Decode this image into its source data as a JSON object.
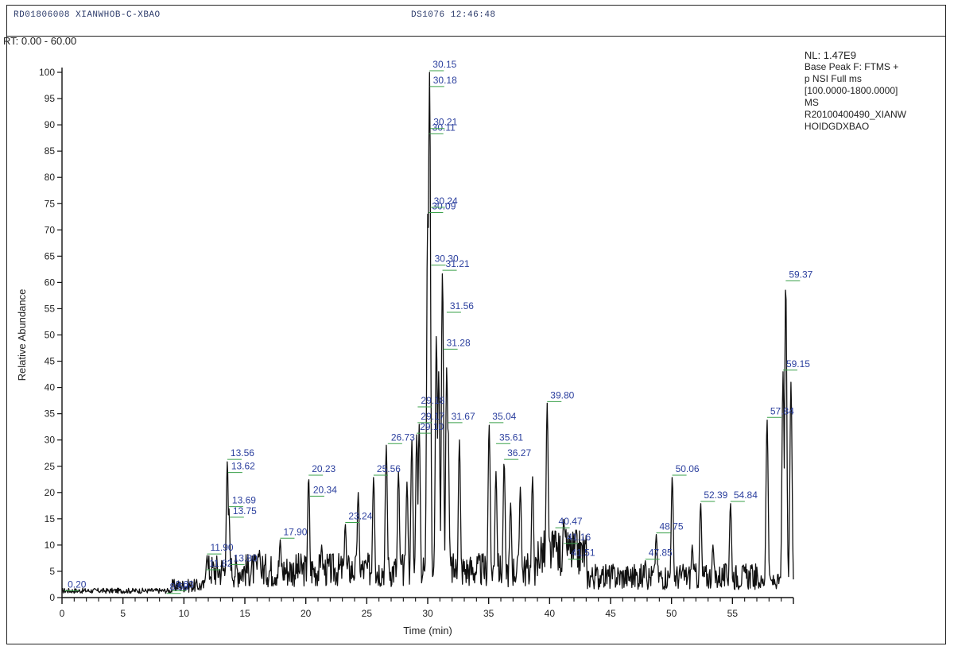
{
  "header": {
    "left_text": "RD01806008 XIANWHOB-C-XBAO",
    "right_text": "DS1076 12:46:48"
  },
  "rt_range": "RT: 0.00 - 60.00",
  "info": {
    "nl": "NL: 1.47E9",
    "lines": [
      "Base Peak F: FTMS +",
      "p NSI Full ms",
      "[100.0000-1800.0000]",
      "MS",
      "R20100400490_XIANW",
      "HOIDGDXBAO"
    ]
  },
  "chart_data": {
    "type": "line",
    "title": "",
    "xlabel": "Time (min)",
    "ylabel": "Relative Abundance",
    "xlim": [
      0,
      60
    ],
    "ylim": [
      0,
      100
    ],
    "x_ticks": [
      0,
      5,
      10,
      15,
      20,
      25,
      30,
      35,
      40,
      45,
      50,
      55
    ],
    "x_tick_labels": [
      "0",
      "5",
      "10",
      "15",
      "20",
      "25",
      "30",
      "35",
      "40",
      "45",
      "50",
      "55"
    ],
    "y_ticks": [
      0,
      5,
      10,
      15,
      20,
      25,
      30,
      35,
      40,
      45,
      50,
      55,
      60,
      65,
      70,
      75,
      80,
      85,
      90,
      95,
      100
    ],
    "peaks": [
      {
        "rt": 0.2,
        "abundance": 1
      },
      {
        "rt": 8.58,
        "abundance": 0.5
      },
      {
        "rt": 9.03,
        "abundance": 1
      },
      {
        "rt": 11.82,
        "abundance": 5
      },
      {
        "rt": 11.9,
        "abundance": 8
      },
      {
        "rt": 13.56,
        "abundance": 26
      },
      {
        "rt": 13.69,
        "abundance": 17
      },
      {
        "rt": 13.8,
        "abundance": 6
      },
      {
        "rt": 16.2,
        "abundance": 9
      },
      {
        "rt": 17.9,
        "abundance": 11
      },
      {
        "rt": 20.23,
        "abundance": 23
      },
      {
        "rt": 21.3,
        "abundance": 10
      },
      {
        "rt": 23.24,
        "abundance": 14
      },
      {
        "rt": 24.3,
        "abundance": 20
      },
      {
        "rt": 25.56,
        "abundance": 23
      },
      {
        "rt": 26.6,
        "abundance": 29
      },
      {
        "rt": 27.6,
        "abundance": 24
      },
      {
        "rt": 28.3,
        "abundance": 22
      },
      {
        "rt": 28.7,
        "abundance": 30
      },
      {
        "rt": 29.1,
        "abundance": 31
      },
      {
        "rt": 29.3,
        "abundance": 33
      },
      {
        "rt": 30.0,
        "abundance": 73
      },
      {
        "rt": 30.11,
        "abundance": 88
      },
      {
        "rt": 30.15,
        "abundance": 100
      },
      {
        "rt": 30.71,
        "abundance": 50
      },
      {
        "rt": 30.9,
        "abundance": 43
      },
      {
        "rt": 31.21,
        "abundance": 62
      },
      {
        "rt": 31.56,
        "abundance": 44
      },
      {
        "rt": 31.67,
        "abundance": 33
      },
      {
        "rt": 32.6,
        "abundance": 30
      },
      {
        "rt": 35.04,
        "abundance": 33
      },
      {
        "rt": 35.6,
        "abundance": 24
      },
      {
        "rt": 36.27,
        "abundance": 26
      },
      {
        "rt": 36.8,
        "abundance": 18
      },
      {
        "rt": 37.6,
        "abundance": 21
      },
      {
        "rt": 38.6,
        "abundance": 23
      },
      {
        "rt": 39.8,
        "abundance": 37
      },
      {
        "rt": 40.47,
        "abundance": 13
      },
      {
        "rt": 41.16,
        "abundance": 15
      },
      {
        "rt": 41.51,
        "abundance": 10
      },
      {
        "rt": 44.3,
        "abundance": 5
      },
      {
        "rt": 47.85,
        "abundance": 7
      },
      {
        "rt": 48.75,
        "abundance": 12
      },
      {
        "rt": 50.06,
        "abundance": 23
      },
      {
        "rt": 51.7,
        "abundance": 10
      },
      {
        "rt": 52.39,
        "abundance": 18
      },
      {
        "rt": 53.4,
        "abundance": 10
      },
      {
        "rt": 54.84,
        "abundance": 18
      },
      {
        "rt": 57.84,
        "abundance": 34
      },
      {
        "rt": 59.15,
        "abundance": 43
      },
      {
        "rt": 59.37,
        "abundance": 60
      },
      {
        "rt": 59.8,
        "abundance": 41
      }
    ],
    "peak_labels": [
      {
        "rt": 0.2,
        "abundance": 1,
        "text": "0.20",
        "color": "#2b3f9e"
      },
      {
        "rt": 8.58,
        "abundance": 0.5,
        "text": "8.58",
        "color": "#2b3f9e"
      },
      {
        "rt": 9.03,
        "abundance": 1,
        "text": "9.03",
        "color": "#2b3f9e"
      },
      {
        "rt": 11.82,
        "abundance": 5,
        "text": "11.82",
        "color": "#2b3f9e"
      },
      {
        "rt": 11.9,
        "abundance": 8,
        "text": "11.90",
        "color": "#2b3f9e"
      },
      {
        "rt": 13.56,
        "abundance": 26,
        "text": "13.56",
        "color": "#2b3f9e"
      },
      {
        "rt": 13.62,
        "abundance": 23.5,
        "text": "13.62",
        "color": "#2b3f9e"
      },
      {
        "rt": 13.69,
        "abundance": 17,
        "text": "13.69",
        "color": "#2b3f9e"
      },
      {
        "rt": 13.75,
        "abundance": 15,
        "text": "13.75",
        "color": "#2b3f9e"
      },
      {
        "rt": 13.8,
        "abundance": 6,
        "text": "13.80",
        "color": "#2b3f9e"
      },
      {
        "rt": 17.9,
        "abundance": 11,
        "text": "17.90",
        "color": "#2b3f9e"
      },
      {
        "rt": 20.23,
        "abundance": 23,
        "text": "20.23",
        "color": "#2b3f9e"
      },
      {
        "rt": 20.34,
        "abundance": 19,
        "text": "20.34",
        "color": "#2b3f9e"
      },
      {
        "rt": 23.24,
        "abundance": 14,
        "text": "23.24",
        "color": "#2b3f9e"
      },
      {
        "rt": 25.56,
        "abundance": 23,
        "text": "25.56",
        "color": "#2b3f9e"
      },
      {
        "rt": 26.73,
        "abundance": 29,
        "text": "26.73",
        "color": "#2b3f9e"
      },
      {
        "rt": 29.1,
        "abundance": 31,
        "text": "29.10",
        "color": "#2b3f9e"
      },
      {
        "rt": 29.17,
        "abundance": 33,
        "text": "29.17",
        "color": "#2b3f9e"
      },
      {
        "rt": 29.18,
        "abundance": 36,
        "text": "29.18",
        "color": "#2b3f9e"
      },
      {
        "rt": 30.09,
        "abundance": 73,
        "text": "30.09",
        "color": "#2b3f9e"
      },
      {
        "rt": 30.11,
        "abundance": 88,
        "text": "30.11",
        "color": "#2b3f9e"
      },
      {
        "rt": 30.15,
        "abundance": 100,
        "text": "30.15",
        "color": "#2b3f9e"
      },
      {
        "rt": 30.18,
        "abundance": 97,
        "text": "30.18",
        "color": "#2b3f9e"
      },
      {
        "rt": 30.21,
        "abundance": 89,
        "text": "30.21",
        "color": "#2b3f9e"
      },
      {
        "rt": 30.24,
        "abundance": 74,
        "text": "30.24",
        "color": "#2b3f9e"
      },
      {
        "rt": 30.3,
        "abundance": 63,
        "text": "30.30",
        "color": "#2b3f9e"
      },
      {
        "rt": 31.21,
        "abundance": 62,
        "text": "31.21",
        "color": "#2b3f9e"
      },
      {
        "rt": 31.56,
        "abundance": 54,
        "text": "31.56",
        "color": "#2b3f9e"
      },
      {
        "rt": 31.28,
        "abundance": 47,
        "text": "31.28",
        "color": "#2b3f9e"
      },
      {
        "rt": 31.67,
        "abundance": 33,
        "text": "31.67",
        "color": "#2b3f9e"
      },
      {
        "rt": 35.04,
        "abundance": 33,
        "text": "35.04",
        "color": "#2b3f9e"
      },
      {
        "rt": 35.61,
        "abundance": 29,
        "text": "35.61",
        "color": "#2b3f9e"
      },
      {
        "rt": 36.27,
        "abundance": 26,
        "text": "36.27",
        "color": "#2b3f9e"
      },
      {
        "rt": 39.8,
        "abundance": 37,
        "text": "39.80",
        "color": "#2b3f9e"
      },
      {
        "rt": 40.47,
        "abundance": 13,
        "text": "40.47",
        "color": "#2b3f9e"
      },
      {
        "rt": 41.16,
        "abundance": 10,
        "text": "41.16",
        "color": "#2b3f9e"
      },
      {
        "rt": 41.51,
        "abundance": 7,
        "text": "41.51",
        "color": "#2b3f9e"
      },
      {
        "rt": 47.85,
        "abundance": 7,
        "text": "47.85",
        "color": "#2b3f9e"
      },
      {
        "rt": 48.75,
        "abundance": 12,
        "text": "48.75",
        "color": "#2b3f9e"
      },
      {
        "rt": 50.06,
        "abundance": 23,
        "text": "50.06",
        "color": "#2b3f9e"
      },
      {
        "rt": 52.39,
        "abundance": 18,
        "text": "52.39",
        "color": "#2b3f9e"
      },
      {
        "rt": 54.84,
        "abundance": 18,
        "text": "54.84",
        "color": "#2b3f9e"
      },
      {
        "rt": 57.84,
        "abundance": 34,
        "text": "57.84",
        "color": "#2b3f9e"
      },
      {
        "rt": 59.15,
        "abundance": 43,
        "text": "59.15",
        "color": "#2b3f9e"
      },
      {
        "rt": 59.37,
        "abundance": 60,
        "text": "59.37",
        "color": "#2b3f9e"
      }
    ],
    "colors": {
      "trace": "#111111",
      "label": "#2b3f9e",
      "leader": "#3aa14a"
    }
  }
}
